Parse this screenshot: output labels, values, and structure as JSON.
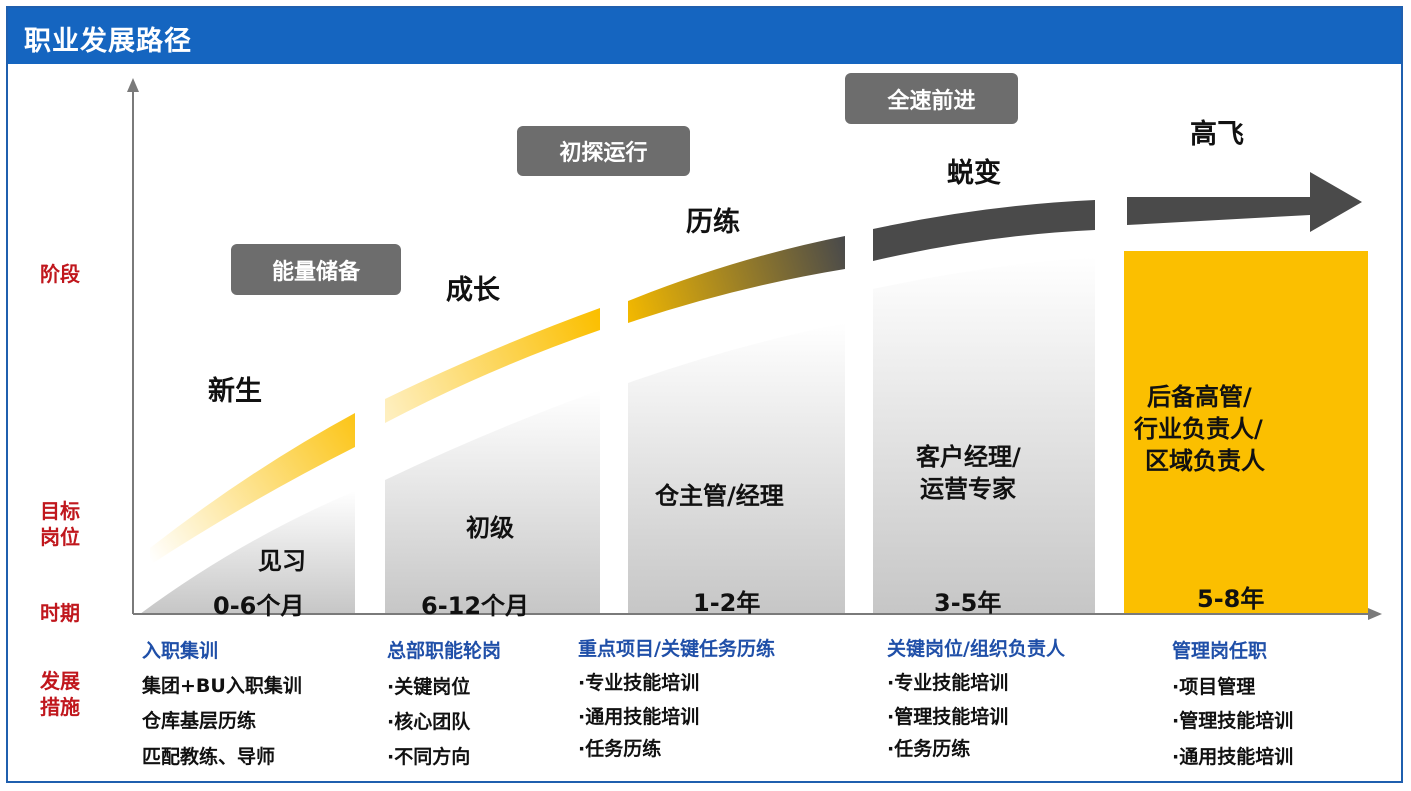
{
  "title": "职业发展路径",
  "row_labels": {
    "stage": "阶段",
    "target_line1": "目标",
    "target_line2": "岗位",
    "period": "时期",
    "measures_line1": "发展",
    "measures_line2": "措施"
  },
  "phases": [
    "能量储备",
    "初探运行",
    "全速前进"
  ],
  "stages": [
    "新生",
    "成长",
    "历练",
    "蜕变",
    "高飞"
  ],
  "targets": {
    "c1": "见习",
    "c2": "初级",
    "c3": "仓主管/经理",
    "c4_line1": "客户经理/",
    "c4_line2": "运营专家",
    "c5_line1": "后备高管/",
    "c5_line2": "行业负责人/",
    "c5_line3": "区域负责人"
  },
  "periods": [
    "0-6个月",
    "6-12个月",
    "1-2年",
    "3-5年",
    "5-8年"
  ],
  "measures": [
    {
      "heading": "入职集训",
      "items": [
        "集团+BU入职集训",
        "仓库基层历练",
        "匹配教练、导师"
      ]
    },
    {
      "heading": "总部职能轮岗",
      "items": [
        "·关键岗位",
        "·核心团队",
        "·不同方向"
      ]
    },
    {
      "heading": "重点项目/关键任务历练",
      "items": [
        "·专业技能培训",
        "·通用技能培训",
        "·任务历练"
      ]
    },
    {
      "heading": "关键岗位/组织负责人",
      "items": [
        "·专业技能培训",
        "·管理技能培训",
        "·任务历练"
      ]
    },
    {
      "heading": "管理岗任职",
      "items": [
        "·项目管理",
        "·管理技能培训",
        "·通用技能培训"
      ]
    }
  ],
  "colors": {
    "header": "#1565c0",
    "accent_yellow": "#fbbf00",
    "pill_gray": "#6d6d6d",
    "arrow_dark": "#4a4a4a",
    "row_label_red": "#c0171d",
    "measure_heading_blue": "#1f4fa8"
  }
}
